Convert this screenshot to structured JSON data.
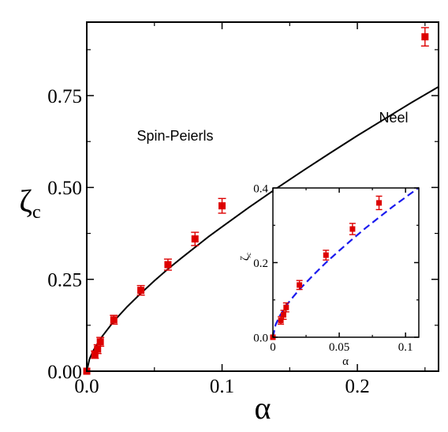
{
  "chart_data": [
    {
      "type": "scatter",
      "xlabel": "α",
      "ylabel": "ζ",
      "ylabel_subscript": "c",
      "xlim": [
        0,
        0.26
      ],
      "ylim": [
        0,
        0.95
      ],
      "x_ticks": [
        0.0,
        0.1,
        0.2
      ],
      "x_tick_labels": [
        "0.0",
        "0.1",
        "0.2"
      ],
      "y_ticks": [
        0.0,
        0.25,
        0.5,
        0.75
      ],
      "y_tick_labels": [
        "0.00",
        "0.25",
        "0.50",
        "0.75"
      ],
      "annotations": [
        "Spin-Peierls",
        "Neel"
      ],
      "series": [
        {
          "kind": "points",
          "color": "#dd0000",
          "marker": "square",
          "points": [
            {
              "x": 0.0,
              "y": 0.0,
              "err": 0.0
            },
            {
              "x": 0.006,
              "y": 0.045,
              "err": 0.01
            },
            {
              "x": 0.008,
              "y": 0.06,
              "err": 0.012
            },
            {
              "x": 0.01,
              "y": 0.08,
              "err": 0.012
            },
            {
              "x": 0.02,
              "y": 0.14,
              "err": 0.012
            },
            {
              "x": 0.04,
              "y": 0.22,
              "err": 0.013
            },
            {
              "x": 0.06,
              "y": 0.29,
              "err": 0.015
            },
            {
              "x": 0.08,
              "y": 0.36,
              "err": 0.018
            },
            {
              "x": 0.1,
              "y": 0.45,
              "err": 0.02
            },
            {
              "x": 0.25,
              "y": 0.91,
              "err": 0.025
            }
          ]
        },
        {
          "kind": "curve",
          "color": "#000000",
          "dashed": false,
          "x": [
            0,
            0.002,
            0.005,
            0.01,
            0.02,
            0.03,
            0.04,
            0.05,
            0.06,
            0.07,
            0.08,
            0.09,
            0.1,
            0.12,
            0.14,
            0.16,
            0.18,
            0.2,
            0.22,
            0.24,
            0.26
          ],
          "y": [
            0,
            0.033,
            0.057,
            0.088,
            0.136,
            0.176,
            0.212,
            0.246,
            0.278,
            0.308,
            0.337,
            0.366,
            0.393,
            0.446,
            0.497,
            0.546,
            0.594,
            0.641,
            0.686,
            0.731,
            0.774
          ]
        }
      ]
    },
    {
      "type": "scatter",
      "inset": true,
      "xlabel": "α",
      "ylabel": "ζ",
      "ylabel_subscript": "c",
      "xlim": [
        0,
        0.11
      ],
      "ylim": [
        0,
        0.4
      ],
      "x_ticks": [
        0,
        0.05,
        0.1
      ],
      "x_tick_labels": [
        "0",
        "0.05",
        "0.1"
      ],
      "y_ticks": [
        0.0,
        0.2,
        0.4
      ],
      "y_tick_labels": [
        "0.0",
        "0.2",
        "0.4"
      ],
      "series": [
        {
          "kind": "points",
          "color": "#dd0000",
          "marker": "square",
          "points": [
            {
              "x": 0.0,
              "y": 0.0,
              "err": 0.0
            },
            {
              "x": 0.006,
              "y": 0.045,
              "err": 0.01
            },
            {
              "x": 0.008,
              "y": 0.06,
              "err": 0.012
            },
            {
              "x": 0.01,
              "y": 0.08,
              "err": 0.012
            },
            {
              "x": 0.02,
              "y": 0.14,
              "err": 0.012
            },
            {
              "x": 0.04,
              "y": 0.22,
              "err": 0.013
            },
            {
              "x": 0.06,
              "y": 0.29,
              "err": 0.015
            },
            {
              "x": 0.08,
              "y": 0.36,
              "err": 0.018
            }
          ]
        },
        {
          "kind": "curve",
          "color": "#1a1aee",
          "dashed": true,
          "x": [
            0,
            0.002,
            0.005,
            0.01,
            0.015,
            0.02,
            0.03,
            0.04,
            0.05,
            0.06,
            0.07,
            0.08,
            0.09,
            0.1,
            0.11
          ],
          "y": [
            0,
            0.033,
            0.056,
            0.085,
            0.107,
            0.128,
            0.165,
            0.2,
            0.232,
            0.263,
            0.293,
            0.321,
            0.349,
            0.375,
            0.401
          ]
        }
      ]
    }
  ]
}
